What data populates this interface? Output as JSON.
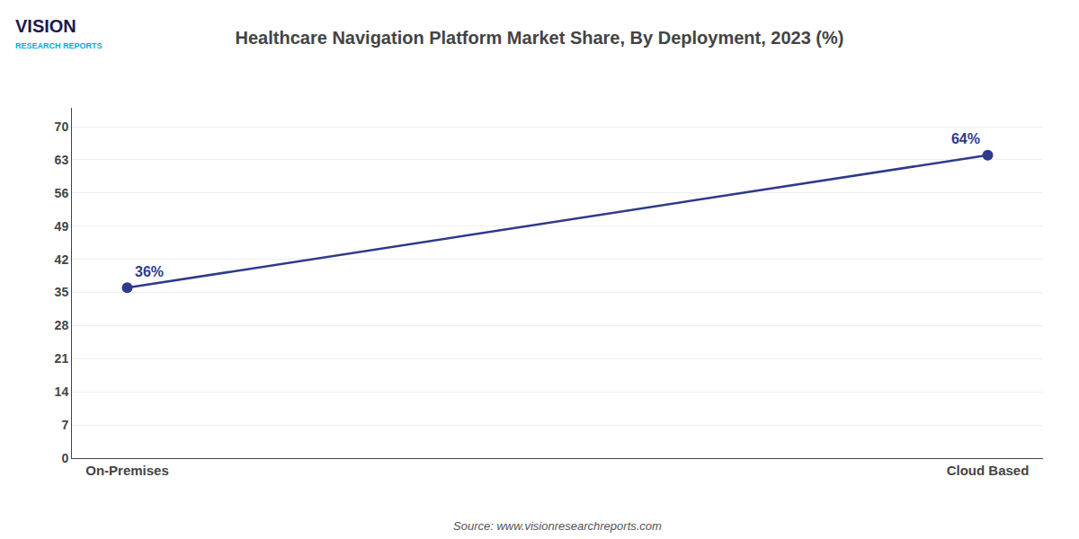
{
  "chart_data": {
    "type": "line",
    "title": "Healthcare Navigation Platform Market Share, By Deployment, 2023 (%)",
    "categories": [
      "On-Premises",
      "Cloud Based"
    ],
    "values": [
      36,
      64
    ],
    "value_labels": [
      "36%",
      "64%"
    ],
    "data_labels": true,
    "color": "#2e3a8c",
    "marker": "circle",
    "ylim": [
      0,
      74
    ],
    "yticks": [
      0,
      7,
      14,
      21,
      28,
      35,
      42,
      49,
      56,
      63,
      70
    ],
    "grid": true,
    "annotations": [
      "Source: www.visionresearchreports.com",
      "VISION",
      "RESEARCH REPORTS"
    ]
  }
}
